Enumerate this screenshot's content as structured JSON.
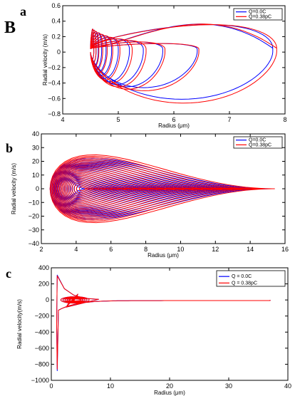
{
  "figure": {
    "big_label": "B",
    "panels": [
      "a",
      "b",
      "c"
    ]
  },
  "chart_data": [
    {
      "panel": "a",
      "type": "line",
      "title": "",
      "xlabel": "Radius (μm)",
      "ylabel": "Radial velocity (m/s)",
      "xlim": [
        4,
        8
      ],
      "ylim": [
        -0.8,
        0.6
      ],
      "xticks": [
        "4",
        "5",
        "6",
        "7",
        "8"
      ],
      "yticks": [
        "0.6",
        "0.4",
        "0.2",
        "0",
        "−0.2",
        "−0.4",
        "−0.6",
        "−0.8"
      ],
      "legend_position": "top-right",
      "series": [
        {
          "name": "Q=0.0C",
          "color": "#0000ff",
          "center_r": 4.5,
          "max_r": 7.78,
          "radii": [
            7.78,
            6.42,
            5.8,
            5.45,
            5.2,
            5.0,
            4.88,
            4.78,
            4.7,
            4.64,
            4.6,
            4.56
          ],
          "depth": [
            -0.61,
            -0.46,
            -0.45,
            -0.42,
            -0.38,
            -0.34,
            -0.3,
            -0.26,
            -0.22,
            -0.18,
            -0.13,
            -0.09
          ]
        },
        {
          "name": "Q=0.38pC",
          "color": "#ff0000",
          "center_r": 4.5,
          "max_r": 7.85,
          "radii": [
            7.85,
            6.45,
            5.84,
            5.5,
            5.25,
            5.03,
            4.9,
            4.8,
            4.72,
            4.65,
            4.6,
            4.56
          ],
          "depth": [
            -0.66,
            -0.5,
            -0.48,
            -0.45,
            -0.4,
            -0.36,
            -0.32,
            -0.27,
            -0.23,
            -0.19,
            -0.14,
            -0.1
          ]
        }
      ]
    },
    {
      "panel": "b",
      "type": "line",
      "title": "",
      "xlabel": "Radius (μm)",
      "ylabel": "Radial velocity (m/s)",
      "xlim": [
        2,
        16
      ],
      "ylim": [
        -40,
        40
      ],
      "xticks": [
        "2",
        "4",
        "6",
        "8",
        "10",
        "12",
        "14",
        "16"
      ],
      "yticks": [
        "40",
        "30",
        "20",
        "10",
        "0",
        "−10",
        "−20",
        "−30",
        "−40"
      ],
      "legend_position": "top-right",
      "series": [
        {
          "name": "Q=0.0C",
          "color": "#0000ff",
          "center_r": 4.3,
          "max_r": 15.2,
          "amp_max": 31
        },
        {
          "name": "Q=0.38pC",
          "color": "#ff0000",
          "center_r": 4.5,
          "max_r": 15.4,
          "amp_max": 34
        }
      ]
    },
    {
      "panel": "c",
      "type": "line",
      "title": "",
      "xlabel": "Radius (μm)",
      "ylabel": "Radial velocity(m/s)",
      "xlim": [
        0,
        40
      ],
      "ylim": [
        -1000,
        400
      ],
      "xticks": [
        "0",
        "10",
        "20",
        "30",
        "40"
      ],
      "yticks": [
        "400",
        "200",
        "0",
        "−200",
        "−400",
        "−600",
        "−800",
        "−1000"
      ],
      "legend_position": "top-right",
      "series": [
        {
          "name": "Q = 0.0C",
          "color": "#0000ff",
          "peak_r": 1.0,
          "peak_v": 310,
          "trough_v": -880,
          "max_r": 37
        },
        {
          "name": "Q = 0.38pC",
          "color": "#ff0000",
          "peak_r": 1.0,
          "peak_v": 300,
          "trough_v": -860,
          "max_r": 37
        }
      ]
    }
  ]
}
